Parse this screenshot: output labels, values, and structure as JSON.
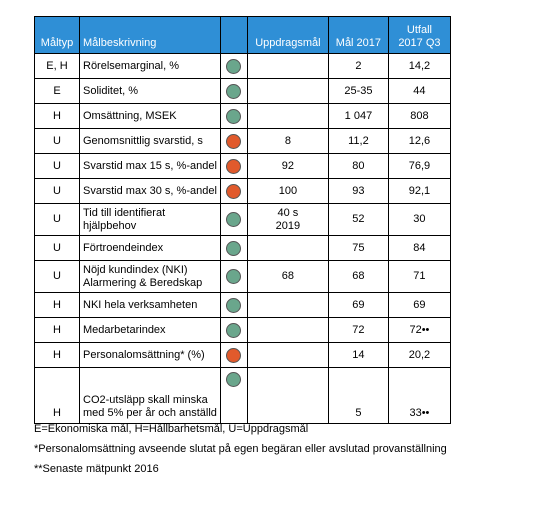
{
  "colors": {
    "header_bg": "#2f8fd6",
    "green": "#6aa68c",
    "red": "#e15a2c"
  },
  "table": {
    "headers": {
      "type": "Måltyp",
      "description": "Målbeskrivning",
      "assignment": "Uppdragsmål",
      "goal": "Mål 2017",
      "outcome_line1": "Utfall",
      "outcome_line2": "2017 Q3"
    },
    "rows": [
      {
        "type": "E, H",
        "description": "Rörelsemarginal, %",
        "status": "green",
        "assignment": "",
        "goal": "2",
        "outcome": "14,2"
      },
      {
        "type": "E",
        "description": "Soliditet, %",
        "status": "green",
        "assignment": "",
        "goal": "25-35",
        "outcome": "44"
      },
      {
        "type": "H",
        "description": "Omsättning, MSEK",
        "status": "green",
        "assignment": "",
        "goal": "1 047",
        "outcome": "808"
      },
      {
        "type": "U",
        "description": "Genomsnittlig svarstid, s",
        "status": "red",
        "assignment": "8",
        "goal": "11,2",
        "outcome": "12,6"
      },
      {
        "type": "U",
        "description": "Svarstid max 15 s, %-andel",
        "status": "red",
        "assignment": "92",
        "goal": "80",
        "outcome": "76,9"
      },
      {
        "type": "U",
        "description": "Svarstid max 30 s, %-andel",
        "status": "red",
        "assignment": "100",
        "goal": "93",
        "outcome": "92,1"
      },
      {
        "type": "U",
        "description_line1": "Tid till identifierat",
        "description_line2": "hjälpbehov",
        "status": "green",
        "assignment_line1": "40 s",
        "assignment_line2": "2019",
        "goal": "52",
        "outcome": "30"
      },
      {
        "type": "U",
        "description": "Förtroendeindex",
        "status": "green",
        "assignment": "",
        "goal": "75",
        "outcome": "84"
      },
      {
        "type": "U",
        "description_line1": "Nöjd kundindex (NKI)",
        "description_line2": "Alarmering & Beredskap",
        "status": "green",
        "assignment": "68",
        "goal": "68",
        "outcome": "71"
      },
      {
        "type": "H",
        "description": "NKI hela verksamheten",
        "status": "green",
        "assignment": "",
        "goal": "69",
        "outcome": "69"
      },
      {
        "type": "H",
        "description": "Medarbetarindex",
        "status": "green",
        "assignment": "",
        "goal": "72",
        "outcome": "72••"
      },
      {
        "type": "H",
        "description": "Personalomsättning* (%)",
        "status": "red",
        "assignment": "",
        "goal": "14",
        "outcome": "20,2"
      },
      {
        "type": "H",
        "description_line1": "CO2-utsläpp skall minska",
        "description_line2": "med 5% per år och anställd",
        "status": "green",
        "assignment": "",
        "goal": "5",
        "outcome": "33••"
      }
    ]
  },
  "footnotes": {
    "legend": "E=Ekonomiska mål, H=Hållbarhetsmål, U=Uppdragsmål",
    "note1": "*Personalomsättning avseende slutat på egen begäran eller avslutad provanställning",
    "note2": "**Senaste mätpunkt 2016"
  }
}
